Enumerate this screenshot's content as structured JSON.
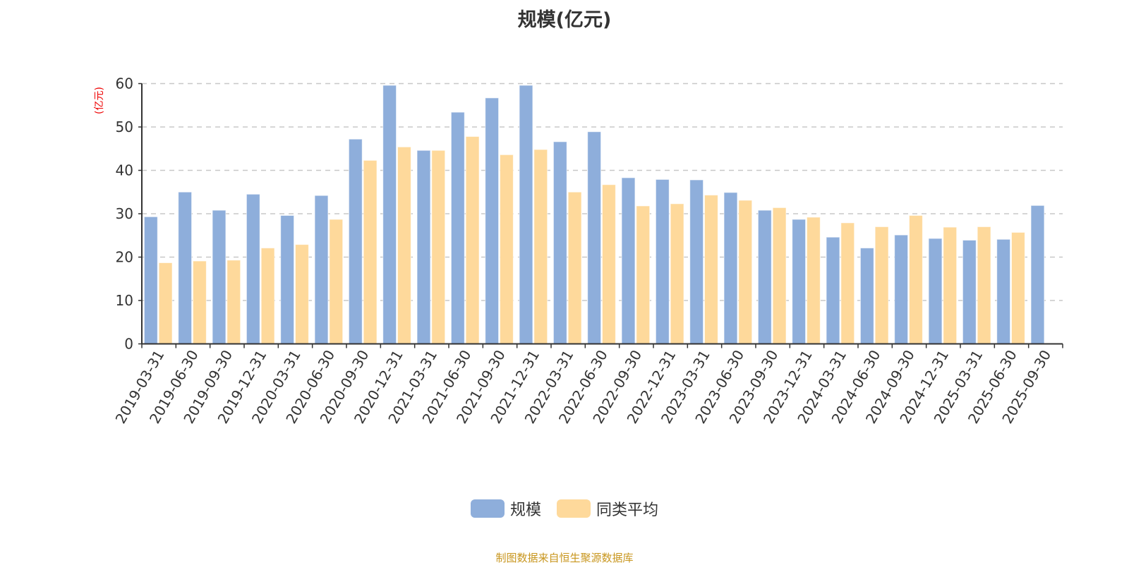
{
  "chart_data": {
    "type": "bar",
    "title": "规模(亿元)",
    "ylabel": "(亿元)",
    "xlabel": "",
    "ylim": [
      0,
      60
    ],
    "yticks": [
      0,
      10,
      20,
      30,
      40,
      50,
      60
    ],
    "grid": true,
    "legend_position": "bottom",
    "categories": [
      "2019-03-31",
      "2019-06-30",
      "2019-09-30",
      "2019-12-31",
      "2020-03-31",
      "2020-06-30",
      "2020-09-30",
      "2020-12-31",
      "2021-03-31",
      "2021-06-30",
      "2021-09-30",
      "2021-12-31",
      "2022-03-31",
      "2022-06-30",
      "2022-09-30",
      "2022-12-31",
      "2023-03-31",
      "2023-06-30",
      "2023-09-30",
      "2023-12-31",
      "2024-03-31",
      "2024-06-30",
      "2024-09-30",
      "2024-12-31",
      "2025-03-31",
      "2025-06-30",
      "2025-09-30"
    ],
    "series": [
      {
        "name": "规模",
        "color": "#8eaedb",
        "values": [
          29.3,
          35.0,
          30.8,
          34.5,
          29.6,
          34.2,
          47.2,
          59.6,
          44.6,
          53.4,
          56.7,
          59.6,
          46.6,
          48.9,
          38.3,
          37.9,
          37.8,
          34.9,
          30.8,
          28.7,
          24.6,
          22.1,
          25.1,
          24.3,
          23.9,
          24.1,
          31.9
        ]
      },
      {
        "name": "同类平均",
        "color": "#fed99b",
        "values": [
          18.7,
          19.1,
          19.3,
          22.1,
          22.9,
          28.7,
          42.3,
          45.4,
          44.6,
          47.8,
          43.6,
          44.8,
          35.0,
          36.7,
          31.8,
          32.3,
          34.3,
          33.1,
          31.4,
          29.2,
          27.9,
          27.0,
          29.6,
          26.9,
          27.0,
          25.7,
          null
        ]
      }
    ]
  },
  "source": "制图数据来自恒生聚源数据库"
}
